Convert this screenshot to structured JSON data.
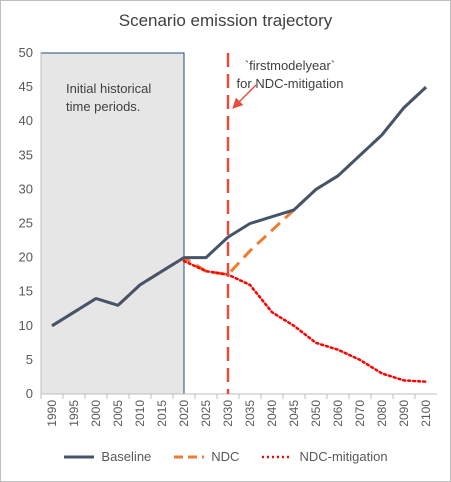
{
  "chart_data": {
    "type": "line",
    "title": "Scenario emission trajectory",
    "ylim": [
      0,
      50
    ],
    "yticks": [
      0,
      5,
      10,
      15,
      20,
      25,
      30,
      35,
      40,
      45,
      50
    ],
    "categories": [
      "1990",
      "1995",
      "2000",
      "2005",
      "2010",
      "2015",
      "2020",
      "2025",
      "2030",
      "2035",
      "2040",
      "2045",
      "2050",
      "2060",
      "2070",
      "2080",
      "2090",
      "2100"
    ],
    "series": [
      {
        "name": "Baseline",
        "color": "#44546a",
        "style": "solid",
        "values": [
          10,
          12,
          14,
          13,
          16,
          18,
          20,
          20,
          23,
          25,
          26,
          27,
          30,
          32,
          35,
          38,
          42,
          45
        ]
      },
      {
        "name": "NDC",
        "color": "#ed7d31",
        "style": "dashed",
        "values": [
          10,
          12,
          14,
          13,
          16,
          18,
          20,
          18,
          17.5,
          21,
          24,
          27,
          30,
          32,
          35,
          38,
          42,
          45
        ]
      },
      {
        "name": "NDC-mitigation",
        "color": "#ff0000",
        "style": "dotted",
        "values": [
          null,
          null,
          null,
          null,
          null,
          null,
          19.5,
          18,
          17.5,
          16,
          12,
          10,
          7.5,
          6.5,
          5,
          3,
          2,
          1.8
        ]
      }
    ],
    "shaded_region": {
      "from": "1990",
      "to": "2020",
      "label_lines": [
        "Initial historical",
        "time periods."
      ]
    },
    "marker_line": {
      "at": "2030",
      "color": "#e74c3c",
      "label_lines": [
        "`firstmodelyear`",
        "for NDC-mitigation"
      ]
    },
    "grid": false,
    "legend": "bottom"
  }
}
